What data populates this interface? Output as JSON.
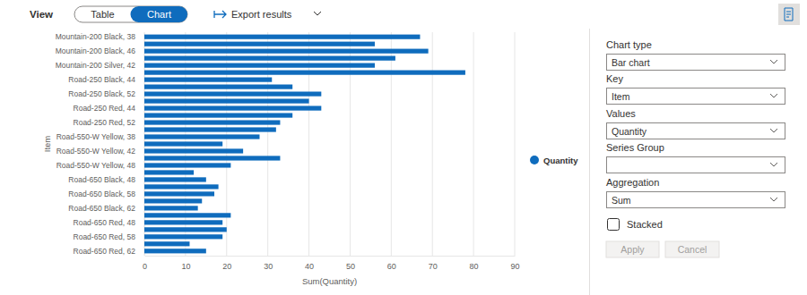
{
  "toolbar": {
    "view_label": "View",
    "view_options": [
      "Table",
      "Chart"
    ],
    "selected_view": "Chart",
    "export": "Export results"
  },
  "settings_panel": {
    "fields": [
      {
        "label": "Chart type",
        "value": "Bar chart"
      },
      {
        "label": "Key",
        "value": "Item"
      },
      {
        "label": "Values",
        "value": "Quantity"
      },
      {
        "label": "Series Group"
      },
      {
        "label": "Aggregation",
        "value": "Sum"
      }
    ],
    "checkbox": {
      "label": "Stacked",
      "checked": false
    },
    "buttons": [
      "Apply",
      "Cancel"
    ]
  },
  "chart_data": {
    "type": "bar",
    "orientation": "horizontal",
    "xlabel": "Sum(Quantity)",
    "ylabel": "Item",
    "categories": [
      "Mountain-200 Black, 38",
      null,
      "Mountain-200 Black, 46",
      null,
      "Mountain-200 Silver, 42",
      null,
      "Road-250 Black, 44",
      null,
      "Road-250 Black, 52",
      null,
      "Road-250 Red, 44",
      null,
      "Road-250 Red, 52",
      null,
      "Road-550-W Yellow, 38",
      null,
      "Road-550-W Yellow, 42",
      null,
      "Road-550-W Yellow, 48",
      null,
      "Road-650 Black, 48",
      null,
      "Road-650 Black, 58",
      null,
      "Road-650 Black, 62",
      null,
      "Road-650 Red, 48",
      null,
      "Road-650 Red, 58",
      null,
      "Road-650 Red, 62"
    ],
    "series": [
      {
        "name": "Quantity",
        "color": "#0f6cbd",
        "values": [
          67,
          56,
          69,
          61,
          56,
          78,
          31,
          36,
          43,
          40,
          43,
          36,
          33,
          32,
          28,
          19,
          24,
          33,
          21,
          12,
          15,
          18,
          17,
          14,
          13,
          21,
          19,
          20,
          19,
          11,
          15
        ]
      }
    ],
    "xlim": [
      0,
      90
    ],
    "xticks": [
      0,
      10,
      20,
      30,
      40,
      50,
      60,
      70,
      80,
      90
    ],
    "grid": true,
    "legend": "right"
  }
}
